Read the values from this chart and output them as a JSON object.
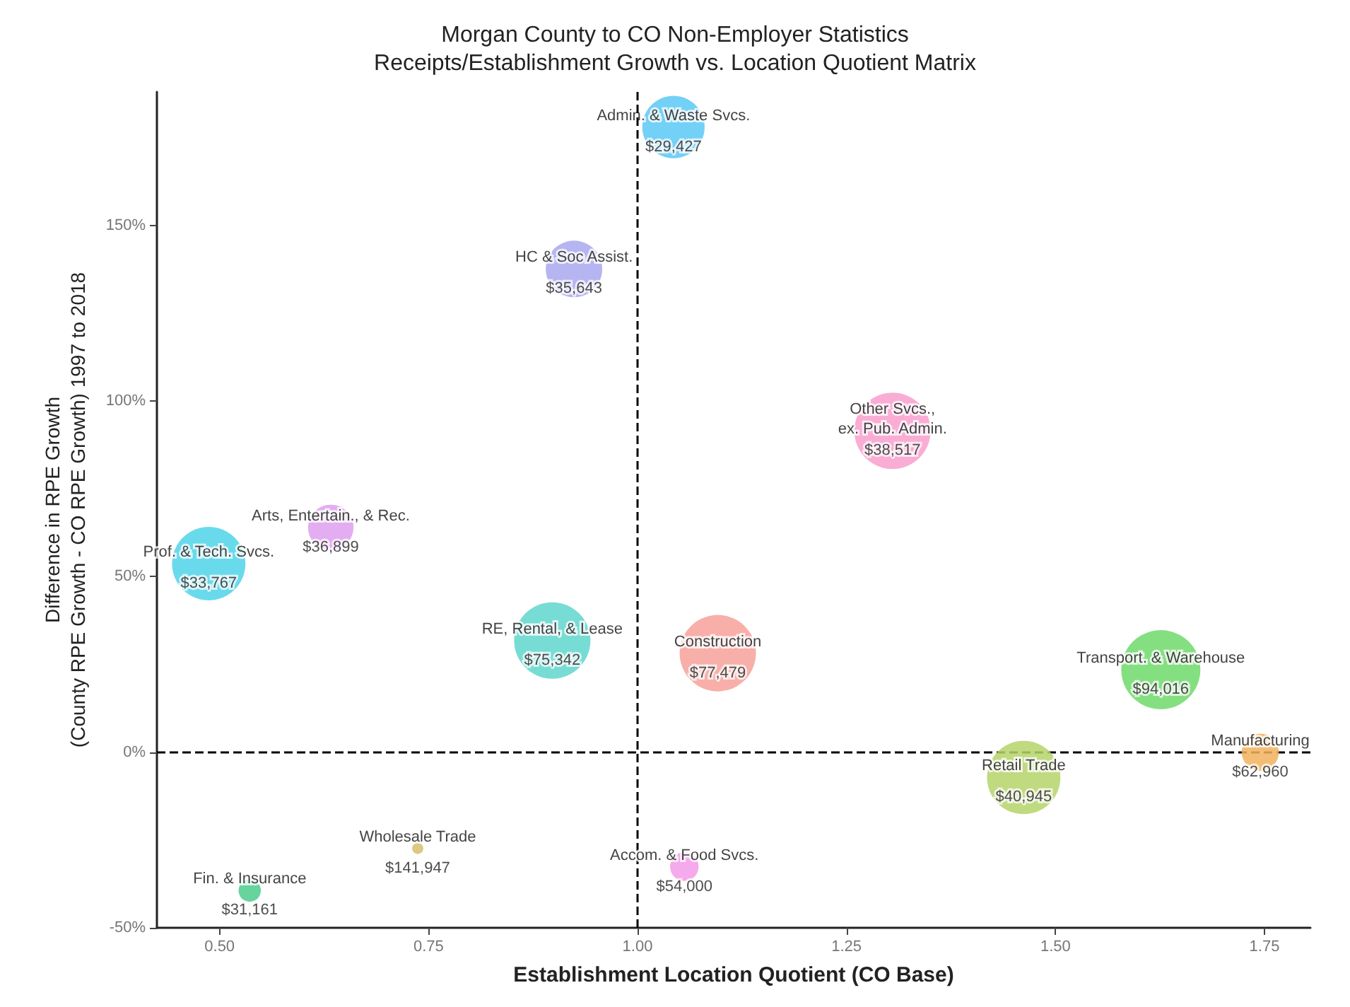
{
  "chart_data": {
    "type": "bubble",
    "title": "Morgan County to CO Non-Employer Statistics",
    "subtitle": "Receipts/Establishment Growth vs. Location Quotient Matrix",
    "xlabel": "Establishment Location Quotient (CO Base)",
    "ylabel": "Difference in RPE Growth\n(County RPE Growth - CO RPE Growth) 1997 to 2018",
    "xlim": [
      0.425,
      1.805
    ],
    "xticks": [
      {
        "value": 0.5,
        "label": "0.50"
      },
      {
        "value": 0.75,
        "label": "0.75"
      },
      {
        "value": 1,
        "label": "1.00"
      },
      {
        "value": 1.25,
        "label": "1.25"
      },
      {
        "value": 1.5,
        "label": "1.50"
      },
      {
        "value": 1.75,
        "label": "1.75"
      }
    ],
    "ylim": [
      -50,
      188
    ],
    "yticks": [
      {
        "value": -50,
        "label": "-50%"
      },
      {
        "value": 0,
        "label": "0%"
      },
      {
        "value": 50,
        "label": "50%"
      },
      {
        "value": 100,
        "label": "100%"
      },
      {
        "value": 150,
        "label": "150%"
      }
    ],
    "grid": false,
    "legend": false,
    "marker": "circle",
    "ref_lines": [
      {
        "axis": "x",
        "value": 1,
        "line_style": "dashed",
        "color": "#000000"
      },
      {
        "axis": "y",
        "value": 0,
        "line_style": "dashed",
        "color": "#000000"
      }
    ],
    "series": [
      {
        "name": "Admin. & Waste Svcs.",
        "color": "#5bc8f5",
        "x": [
          1.043
        ],
        "values": [
          178
        ],
        "sizes": [
          0.62
        ]
      },
      {
        "name": "HC & Soc Assist.",
        "color": "#a9a8f0",
        "x": [
          0.924
        ],
        "values": [
          137.6
        ],
        "sizes": [
          0.51
        ]
      },
      {
        "name": "Other Svcs.,\nex. Pub. Admin.",
        "color": "#f99fcc",
        "x": [
          1.305
        ],
        "values": [
          91.5
        ],
        "sizes": [
          0.93
        ]
      },
      {
        "name": "Arts, Entertain., & Rec.",
        "color": "#de9ff0",
        "x": [
          0.633
        ],
        "values": [
          64
        ],
        "sizes": [
          0.33
        ]
      },
      {
        "name": "Prof. & Tech. Svcs.",
        "color": "#4fd3e8",
        "x": [
          0.487
        ],
        "values": [
          53.7
        ],
        "sizes": [
          0.86
        ]
      },
      {
        "name": "RE, Rental, & Lease",
        "color": "#5fd6cc",
        "x": [
          0.898
        ],
        "values": [
          31.8
        ],
        "sizes": [
          0.93
        ]
      },
      {
        "name": "Construction",
        "color": "#f7a19a",
        "x": [
          1.096
        ],
        "values": [
          28.2
        ],
        "sizes": [
          0.93
        ]
      },
      {
        "name": "Transport. & Warehouse",
        "color": "#6fd96a",
        "x": [
          1.626
        ],
        "values": [
          23.5
        ],
        "sizes": [
          1
        ]
      },
      {
        "name": "Retail Trade",
        "color": "#b5d36a",
        "x": [
          1.462
        ],
        "values": [
          -7.2
        ],
        "sizes": [
          0.86
        ]
      },
      {
        "name": "Manufacturing",
        "color": "#f2b25e",
        "x": [
          1.745
        ],
        "values": [
          0
        ],
        "sizes": [
          0.22
        ]
      },
      {
        "name": "Accom. & Food Svcs.",
        "color": "#f39be8",
        "x": [
          1.056
        ],
        "values": [
          -32.6
        ],
        "sizes": [
          0.13
        ]
      },
      {
        "name": "Wholesale Trade",
        "color": "#d6c06e",
        "x": [
          0.737
        ],
        "values": [
          -27.4
        ],
        "sizes": [
          0.02
        ]
      },
      {
        "name": "Fin. & Insurance",
        "color": "#4ccc8c",
        "x": [
          0.536
        ],
        "values": [
          -39.4
        ],
        "sizes": [
          0.08
        ]
      }
    ],
    "annotations": [
      {
        "text": "$29,427",
        "x": 1.043,
        "y": 178
      },
      {
        "text": "$35,643",
        "x": 0.924,
        "y": 137.6
      },
      {
        "text": "$38,517",
        "x": 1.305,
        "y": 91.5
      },
      {
        "text": "$36,899",
        "x": 0.633,
        "y": 64
      },
      {
        "text": "$33,767",
        "x": 0.487,
        "y": 53.7
      },
      {
        "text": "$75,342",
        "x": 0.898,
        "y": 31.8
      },
      {
        "text": "$77,479",
        "x": 1.096,
        "y": 28.2
      },
      {
        "text": "$94,016",
        "x": 1.626,
        "y": 23.5
      },
      {
        "text": "$40,945",
        "x": 1.462,
        "y": -7.2
      },
      {
        "text": "$62,960",
        "x": 1.745,
        "y": 0
      },
      {
        "text": "$54,000",
        "x": 1.056,
        "y": -32.6
      },
      {
        "text": "$141,947",
        "x": 0.737,
        "y": -27.4
      },
      {
        "text": "$31,161",
        "x": 0.536,
        "y": -39.4
      }
    ]
  }
}
